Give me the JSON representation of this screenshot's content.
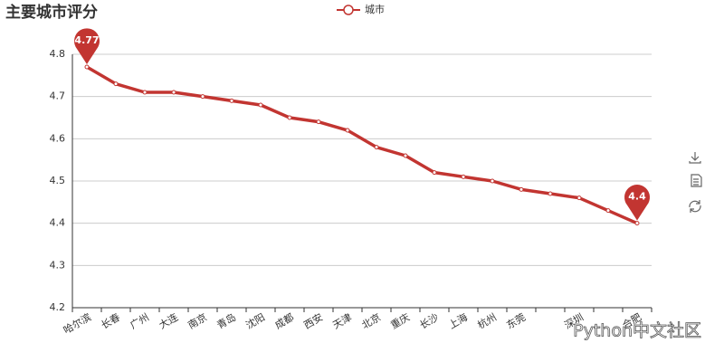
{
  "chart_data": {
    "type": "line",
    "title": "主要城市评分",
    "categories": [
      "哈尔滨",
      "长春",
      "广州",
      "大连",
      "南京",
      "青岛",
      "沈阳",
      "成都",
      "西安",
      "天津",
      "北京",
      "重庆",
      "长沙",
      "上海",
      "杭州",
      "东莞",
      null,
      "深圳",
      null,
      "合肥"
    ],
    "series": [
      {
        "name": "城市",
        "color": "#c23531",
        "values": [
          4.77,
          4.73,
          4.71,
          4.71,
          4.7,
          4.69,
          4.68,
          4.65,
          4.64,
          4.62,
          4.58,
          4.56,
          4.52,
          4.51,
          4.5,
          4.48,
          4.47,
          4.46,
          4.43,
          4.4
        ]
      }
    ],
    "ylim": [
      4.2,
      4.8
    ],
    "yticks": [
      4.2,
      4.3,
      4.4,
      4.5,
      4.6,
      4.7,
      4.8
    ],
    "grid": true,
    "legend": "top",
    "watermark": "Python中文社区"
  }
}
